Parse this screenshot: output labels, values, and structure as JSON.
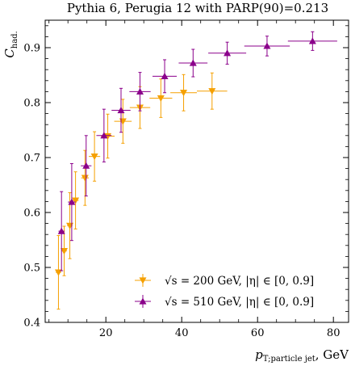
{
  "chart_data": {
    "type": "scatter",
    "title": "Pythia 6, Perugia 12 with PARP(90)=0.213",
    "xlabel": "p_T;particle jet, GeV",
    "xlabel_main": "p",
    "xlabel_sub": "T;particle jet",
    "xlabel_unit": ", GeV",
    "ylabel": "C_had.",
    "ylabel_main": "C",
    "ylabel_sub": "had.",
    "xlim": [
      4,
      84
    ],
    "ylim": [
      0.4,
      0.95
    ],
    "xticks": [
      20,
      40,
      60,
      80
    ],
    "yticks": [
      0.4,
      0.5,
      0.6,
      0.7,
      0.8,
      0.9
    ],
    "grid": false,
    "legend_position": "lower-right",
    "series": [
      {
        "name": "√s = 200 GeV, |η| ∈ [0, 0.9]",
        "label_main": "√s = 200 GeV, |η| ∈ [0, 0.9]",
        "color": "#f5a000",
        "marker": "triangle-down",
        "points": [
          {
            "x": 7.5,
            "y": 0.491,
            "xerr": 0.7,
            "yerr": 0.067
          },
          {
            "x": 9.0,
            "y": 0.53,
            "xerr": 0.7,
            "yerr": 0.045
          },
          {
            "x": 10.5,
            "y": 0.576,
            "xerr": 0.7,
            "yerr": 0.06
          },
          {
            "x": 12.0,
            "y": 0.622,
            "xerr": 0.8,
            "yerr": 0.052
          },
          {
            "x": 14.5,
            "y": 0.663,
            "xerr": 1.0,
            "yerr": 0.05
          },
          {
            "x": 17.0,
            "y": 0.702,
            "xerr": 1.5,
            "yerr": 0.045
          },
          {
            "x": 20.5,
            "y": 0.739,
            "xerr": 1.8,
            "yerr": 0.04
          },
          {
            "x": 24.5,
            "y": 0.766,
            "xerr": 2.3,
            "yerr": 0.04
          },
          {
            "x": 29.0,
            "y": 0.791,
            "xerr": 2.7,
            "yerr": 0.038
          },
          {
            "x": 34.5,
            "y": 0.808,
            "xerr": 3.0,
            "yerr": 0.035
          },
          {
            "x": 40.5,
            "y": 0.818,
            "xerr": 3.5,
            "yerr": 0.033
          },
          {
            "x": 48.0,
            "y": 0.821,
            "xerr": 4.0,
            "yerr": 0.033
          }
        ]
      },
      {
        "name": "√s = 510 GeV, |η| ∈ [0, 0.9]",
        "label_main": "√s = 510 GeV, |η| ∈ [0, 0.9]",
        "color": "#8b008b",
        "marker": "triangle-up",
        "points": [
          {
            "x": 8.3,
            "y": 0.566,
            "xerr": 0.8,
            "yerr": 0.072
          },
          {
            "x": 11.0,
            "y": 0.619,
            "xerr": 1.0,
            "yerr": 0.07
          },
          {
            "x": 14.8,
            "y": 0.685,
            "xerr": 1.4,
            "yerr": 0.055
          },
          {
            "x": 19.5,
            "y": 0.74,
            "xerr": 2.0,
            "yerr": 0.048
          },
          {
            "x": 24.0,
            "y": 0.786,
            "xerr": 2.5,
            "yerr": 0.04
          },
          {
            "x": 29.0,
            "y": 0.82,
            "xerr": 2.8,
            "yerr": 0.035
          },
          {
            "x": 35.5,
            "y": 0.848,
            "xerr": 3.2,
            "yerr": 0.03
          },
          {
            "x": 43.0,
            "y": 0.872,
            "xerr": 3.8,
            "yerr": 0.025
          },
          {
            "x": 52.0,
            "y": 0.89,
            "xerr": 5.0,
            "yerr": 0.02
          },
          {
            "x": 62.5,
            "y": 0.903,
            "xerr": 6.0,
            "yerr": 0.018
          },
          {
            "x": 74.5,
            "y": 0.912,
            "xerr": 6.5,
            "yerr": 0.017
          }
        ]
      }
    ]
  }
}
